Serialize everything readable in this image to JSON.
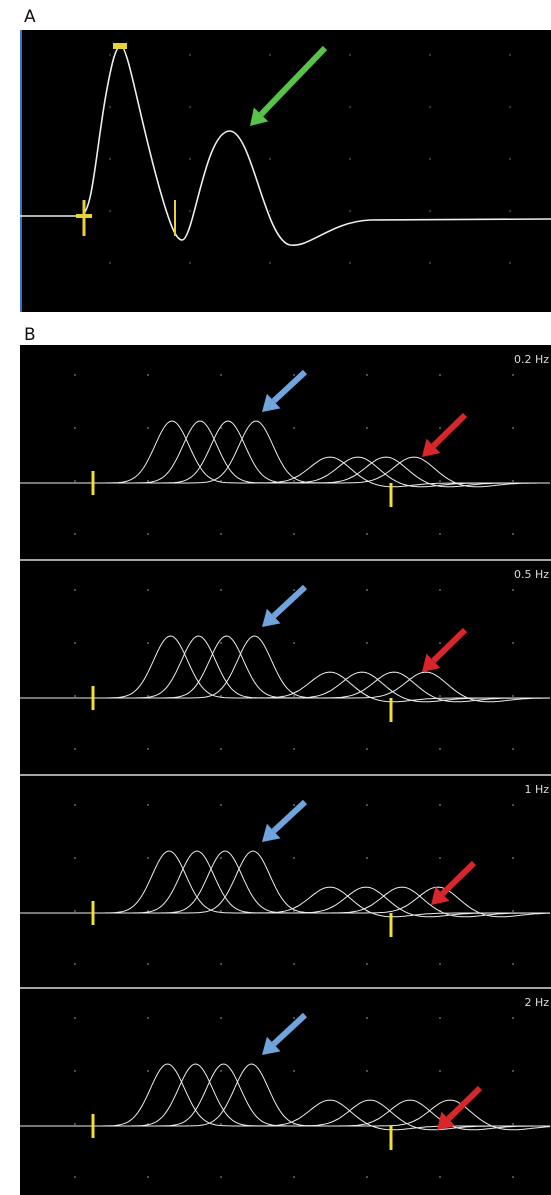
{
  "panels": {
    "a": {
      "label": "A"
    },
    "b": {
      "label": "B",
      "traces": [
        {
          "label": "0.2 Hz"
        },
        {
          "label": "0.5 Hz"
        },
        {
          "label": "1 Hz"
        },
        {
          "label": "2 Hz"
        }
      ]
    }
  }
}
